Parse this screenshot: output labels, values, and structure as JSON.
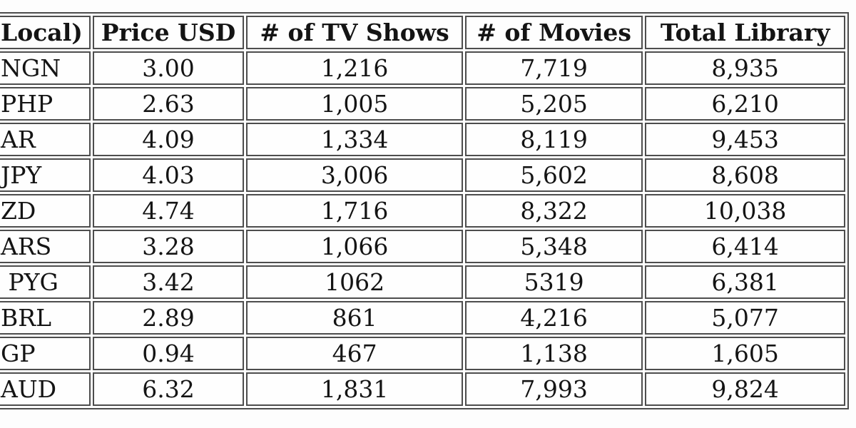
{
  "table": {
    "headers": [
      "Local)",
      "Price USD",
      "# of TV Shows",
      "# of Movies",
      "Total Library"
    ],
    "rows": [
      [
        "NGN",
        "3.00",
        "1,216",
        "7,719",
        "8,935"
      ],
      [
        "PHP",
        "2.63",
        "1,005",
        "5,205",
        "6,210"
      ],
      [
        "AR",
        "4.09",
        "1,334",
        "8,119",
        "9,453"
      ],
      [
        "JPY",
        "4.03",
        "3,006",
        "5,602",
        "8,608"
      ],
      [
        "ZD",
        "4.74",
        "1,716",
        "8,322",
        "10,038"
      ],
      [
        "ARS",
        "3.28",
        "1,066",
        "5,348",
        "6,414"
      ],
      [
        " PYG",
        "3.42",
        "1062",
        "5319",
        "6,381"
      ],
      [
        "BRL",
        "2.89",
        "861",
        "4,216",
        "5,077"
      ],
      [
        "GP",
        "0.94",
        "467",
        "1,138",
        "1,605"
      ],
      [
        "AUD",
        "6.32",
        "1,831",
        "7,993",
        "9,824"
      ]
    ]
  },
  "colors": {
    "border": "#4d4d4d",
    "text": "#141414",
    "background": "#fdfdfd"
  },
  "chart_data": {
    "type": "table",
    "title": "",
    "columns": [
      "Local) [price in local currency, cropped]",
      "Price USD",
      "# of TV Shows",
      "# of Movies",
      "Total Library"
    ],
    "rows": [
      {
        "local_fragment": "NGN",
        "price_usd": 3.0,
        "tv_shows": 1216,
        "movies": 7719,
        "total_library": 8935
      },
      {
        "local_fragment": "PHP",
        "price_usd": 2.63,
        "tv_shows": 1005,
        "movies": 5205,
        "total_library": 6210
      },
      {
        "local_fragment": "AR",
        "price_usd": 4.09,
        "tv_shows": 1334,
        "movies": 8119,
        "total_library": 9453
      },
      {
        "local_fragment": "JPY",
        "price_usd": 4.03,
        "tv_shows": 3006,
        "movies": 5602,
        "total_library": 8608
      },
      {
        "local_fragment": "ZD",
        "price_usd": 4.74,
        "tv_shows": 1716,
        "movies": 8322,
        "total_library": 10038
      },
      {
        "local_fragment": "ARS",
        "price_usd": 3.28,
        "tv_shows": 1066,
        "movies": 5348,
        "total_library": 6414
      },
      {
        "local_fragment": "PYG",
        "price_usd": 3.42,
        "tv_shows": 1062,
        "movies": 5319,
        "total_library": 6381
      },
      {
        "local_fragment": "BRL",
        "price_usd": 2.89,
        "tv_shows": 861,
        "movies": 4216,
        "total_library": 5077
      },
      {
        "local_fragment": "GP",
        "price_usd": 0.94,
        "tv_shows": 467,
        "movies": 1138,
        "total_library": 1605
      },
      {
        "local_fragment": "AUD",
        "price_usd": 6.32,
        "tv_shows": 1831,
        "movies": 7993,
        "total_library": 9824
      }
    ],
    "layout": {
      "cropped_left": true,
      "cropped_right": true,
      "grid": "bordered cells with cell spacing",
      "value_alignment": "center"
    }
  }
}
